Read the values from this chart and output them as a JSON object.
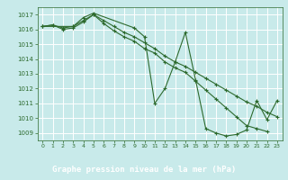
{
  "title": "Graphe pression niveau de la mer (hPa)",
  "bg_color": "#c8eaea",
  "label_bg_color": "#2d6a2d",
  "label_text_color": "#ffffff",
  "grid_color": "#ffffff",
  "line_color": "#2d6a2d",
  "marker_color": "#2d6a2d",
  "xlim": [
    -0.5,
    23.5
  ],
  "ylim": [
    1008.5,
    1017.5
  ],
  "yticks": [
    1009,
    1010,
    1011,
    1012,
    1013,
    1014,
    1015,
    1016,
    1017
  ],
  "xticks": [
    0,
    1,
    2,
    3,
    4,
    5,
    6,
    7,
    8,
    9,
    10,
    11,
    12,
    13,
    14,
    15,
    16,
    17,
    18,
    19,
    20,
    21,
    22,
    23
  ],
  "series": [
    [
      1016.2,
      1016.3,
      1016.1,
      1016.2,
      1016.6,
      1017.0,
      1016.6,
      1016.2,
      1015.8,
      1015.5,
      1015.1,
      1014.7,
      1014.2,
      1013.8,
      1013.5,
      1013.1,
      1012.7,
      1012.3,
      1011.9,
      1011.5,
      1011.1,
      1010.8,
      1010.4,
      1010.1
    ],
    [
      1016.2,
      1016.3,
      1016.0,
      1016.1,
      1016.5,
      1017.0,
      1016.4,
      1015.9,
      1015.5,
      1015.2,
      1014.7,
      1014.4,
      1013.8,
      1013.4,
      1013.1,
      1012.5,
      1011.9,
      1011.3,
      1010.7,
      1010.1,
      1009.5,
      1009.3,
      1009.1,
      null
    ],
    [
      1016.2,
      null,
      null,
      1016.2,
      1016.8,
      1017.1,
      null,
      null,
      null,
      1016.1,
      1015.5,
      1011.0,
      1012.0,
      1013.8,
      1015.8,
      1012.6,
      1009.3,
      1009.0,
      1008.8,
      1008.9,
      1009.2,
      1011.2,
      1009.9,
      1011.2
    ]
  ]
}
